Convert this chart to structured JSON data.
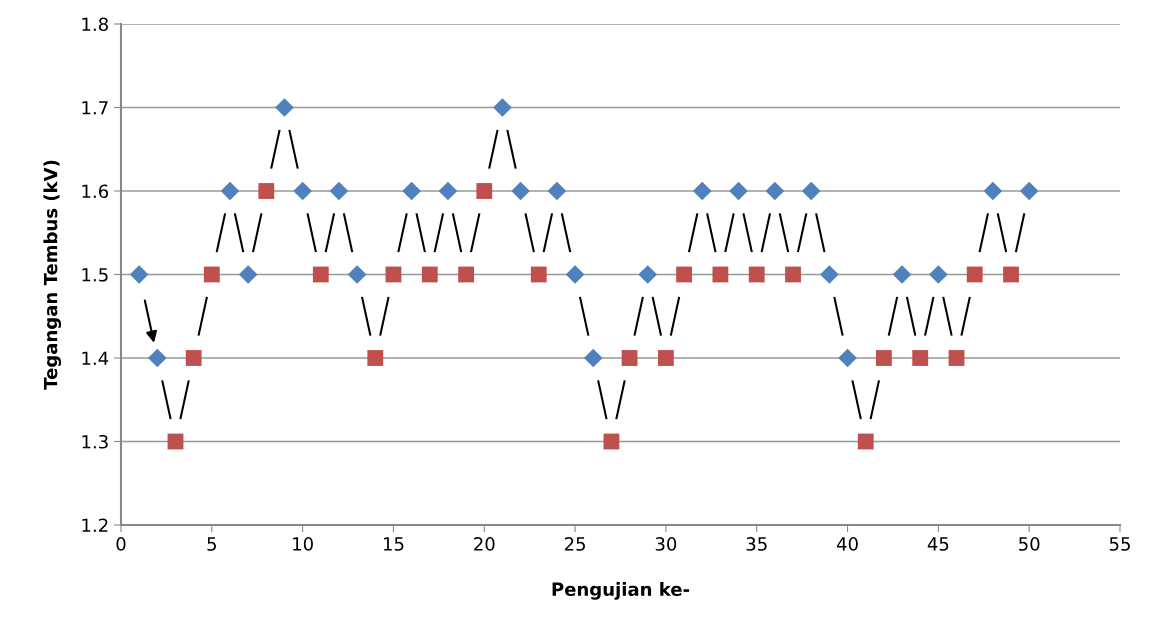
{
  "chart_data": {
    "type": "scatter",
    "xlabel": "Pengujian ke-",
    "ylabel": "Tegangan Tembus (kV)",
    "xlim": [
      0,
      55
    ],
    "xticks": [
      0,
      5,
      10,
      15,
      20,
      25,
      30,
      35,
      40,
      45,
      50,
      55
    ],
    "ylim": [
      1.2,
      1.8
    ],
    "yticks": [
      1.2,
      1.3,
      1.4,
      1.5,
      1.6,
      1.7,
      1.8
    ],
    "grid": "y",
    "series": [
      {
        "color": "#4f81bd",
        "marker": "diamond",
        "x": [
          1,
          2,
          6,
          7,
          9,
          10,
          12,
          13,
          16,
          18,
          21,
          22,
          24,
          25,
          26,
          29,
          32,
          34,
          36,
          38,
          39,
          40,
          43,
          45,
          48,
          50
        ],
        "values": [
          1.5,
          1.4,
          1.6,
          1.5,
          1.7,
          1.6,
          1.6,
          1.5,
          1.6,
          1.6,
          1.7,
          1.6,
          1.6,
          1.5,
          1.4,
          1.5,
          1.6,
          1.6,
          1.6,
          1.6,
          1.5,
          1.4,
          1.5,
          1.5,
          1.6,
          1.6
        ]
      },
      {
        "color": "#c0504d",
        "marker": "square",
        "x": [
          3,
          4,
          5,
          8,
          11,
          14,
          15,
          17,
          19,
          20,
          23,
          27,
          28,
          30,
          31,
          33,
          35,
          37,
          41,
          42,
          44,
          46,
          47,
          49
        ],
        "values": [
          1.3,
          1.4,
          1.5,
          1.6,
          1.5,
          1.4,
          1.5,
          1.5,
          1.5,
          1.6,
          1.5,
          1.3,
          1.4,
          1.4,
          1.5,
          1.5,
          1.5,
          1.5,
          1.3,
          1.4,
          1.4,
          1.4,
          1.5,
          1.5
        ]
      }
    ]
  }
}
